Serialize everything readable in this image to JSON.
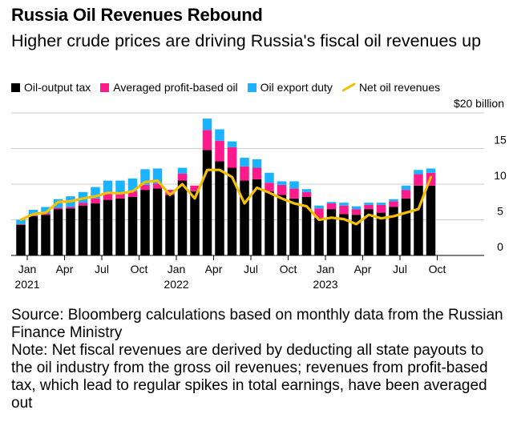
{
  "title": "Russia Oil Revenues Rebound",
  "subtitle": "Higher crude prices are driving Russia's fiscal oil revenues up",
  "source": "Source: Bloomberg calculations based on monthly data from the Russian Finance Ministry",
  "note": "Note: Net fiscal revenues are derived by deducting all state payouts to the oil industry from the gross oil revenues; revenues from profit-based tax, which lead to regular spikes in total earnings, have been averaged out",
  "colors": {
    "oil_output_tax": "#000000",
    "profit_tax": "#ff1a8c",
    "export_duty": "#1ab3ff",
    "net_line": "#f5c000"
  },
  "chart_data": {
    "type": "bar",
    "stacked": true,
    "title": "Russia Oil Revenues Rebound",
    "ylabel": "",
    "y_unit_label": "$20 billion",
    "ylim": [
      0,
      20
    ],
    "yticks": [
      "0",
      "5",
      "10",
      "15"
    ],
    "x_tick_labels": [
      {
        "month": "Jan",
        "year": "2021",
        "index": 0
      },
      {
        "month": "Apr",
        "year": "",
        "index": 3
      },
      {
        "month": "Jul",
        "year": "",
        "index": 6
      },
      {
        "month": "Oct",
        "year": "",
        "index": 9
      },
      {
        "month": "Jan",
        "year": "2022",
        "index": 12
      },
      {
        "month": "Apr",
        "year": "",
        "index": 15
      },
      {
        "month": "Jul",
        "year": "",
        "index": 18
      },
      {
        "month": "Oct",
        "year": "",
        "index": 21
      },
      {
        "month": "Jan",
        "year": "2023",
        "index": 24
      },
      {
        "month": "Apr",
        "year": "",
        "index": 27
      },
      {
        "month": "Jul",
        "year": "",
        "index": 30
      },
      {
        "month": "Oct",
        "year": "",
        "index": 33
      }
    ],
    "categories": [
      "Jan 2021",
      "Feb 2021",
      "Mar 2021",
      "Apr 2021",
      "May 2021",
      "Jun 2021",
      "Jul 2021",
      "Aug 2021",
      "Sep 2021",
      "Oct 2021",
      "Nov 2021",
      "Dec 2021",
      "Jan 2022",
      "Feb 2022",
      "Mar 2022",
      "Apr 2022",
      "May 2022",
      "Jun 2022",
      "Jul 2022",
      "Aug 2022",
      "Sep 2022",
      "Oct 2022",
      "Nov 2022",
      "Dec 2022",
      "Jan 2023",
      "Feb 2023",
      "Mar 2023",
      "Apr 2023",
      "May 2023",
      "Jun 2023",
      "Jul 2023",
      "Aug 2023",
      "Sep 2023",
      "Oct 2023"
    ],
    "series": [
      {
        "name": "Oil-output tax",
        "kind": "bar",
        "color": "#000000",
        "values": [
          4.3,
          5.5,
          5.7,
          6.5,
          6.6,
          7.0,
          7.3,
          7.8,
          8.0,
          8.2,
          9.2,
          9.4,
          8.5,
          10.5,
          9.0,
          14.8,
          13.2,
          12.3,
          10.5,
          10.7,
          9.0,
          8.5,
          8.0,
          8.2,
          5.3,
          6.5,
          5.8,
          5.7,
          6.5,
          6.0,
          6.8,
          8.0,
          9.8,
          9.8
        ]
      },
      {
        "name": "Averaged profit-based oil",
        "kind": "bar",
        "color": "#ff1a8c",
        "values": [
          0.1,
          0.1,
          0.2,
          0.2,
          0.2,
          0.4,
          0.7,
          0.8,
          0.8,
          0.8,
          0.7,
          0.7,
          0.7,
          1.0,
          0.8,
          2.8,
          2.9,
          2.9,
          2.0,
          1.6,
          1.2,
          1.4,
          1.4,
          0.7,
          1.3,
          0.8,
          1.2,
          0.8,
          0.6,
          1.1,
          0.8,
          1.2,
          1.6,
          1.8
        ]
      },
      {
        "name": "Oil export duty",
        "kind": "bar",
        "color": "#1ab3ff",
        "values": [
          0.6,
          0.8,
          0.9,
          1.2,
          1.5,
          1.5,
          1.6,
          1.9,
          1.7,
          1.8,
          2.2,
          2.1,
          0.0,
          0.8,
          0.0,
          1.6,
          1.6,
          0.8,
          1.2,
          1.2,
          1.4,
          0.5,
          1.0,
          0.4,
          0.4,
          0.2,
          0.4,
          0.4,
          0.3,
          0.3,
          0.3,
          0.6,
          0.6,
          0.6
        ]
      },
      {
        "name": "Net oil revenues",
        "kind": "line",
        "color": "#f5c000",
        "values": [
          5.0,
          5.8,
          6.0,
          7.5,
          7.6,
          8.0,
          8.3,
          8.8,
          8.7,
          9.0,
          10.3,
          10.5,
          8.5,
          10.0,
          8.0,
          12.0,
          12.0,
          11.0,
          7.3,
          9.5,
          8.8,
          8.0,
          7.3,
          6.9,
          5.0,
          5.3,
          5.1,
          4.4,
          5.7,
          5.2,
          5.5,
          6.0,
          6.5,
          11.0
        ]
      }
    ],
    "legend": [
      "Oil-output tax",
      "Averaged profit-based oil",
      "Oil export duty",
      "Net oil revenues"
    ],
    "legend_position": "top",
    "grid": "horizontal"
  }
}
